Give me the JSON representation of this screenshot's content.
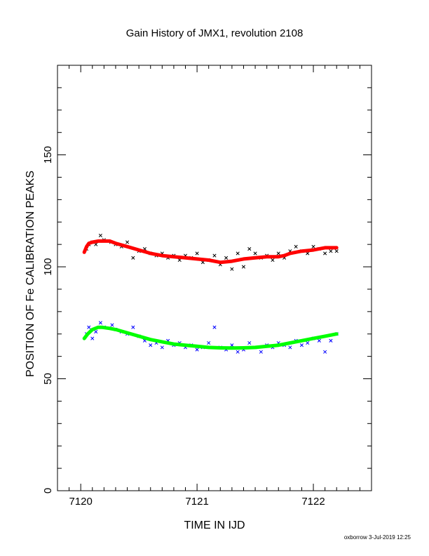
{
  "chart_data": {
    "type": "scatter",
    "title": "Gain History of JMX1, revolution 2108",
    "xlabel": "TIME IN IJD",
    "ylabel": "POSITION OF Fe CALIBRATION PEAKS",
    "xlim": [
      7119.8,
      7122.5
    ],
    "ylim": [
      0,
      190
    ],
    "x_ticks": [
      7120,
      7121,
      7122
    ],
    "x_tick_labels": [
      "7120",
      "7121",
      "7122"
    ],
    "y_ticks": [
      0,
      50,
      100,
      150
    ],
    "y_tick_labels": [
      "0",
      "50",
      "100",
      "150"
    ],
    "grid": false,
    "footer": "oxborrow  3-Jul-2019 12:25",
    "series": [
      {
        "role": "measured-upper",
        "marker": "x",
        "color": "#000000",
        "x": [
          7120.05,
          7120.07,
          7120.1,
          7120.13,
          7120.17,
          7120.2,
          7120.26,
          7120.3,
          7120.35,
          7120.4,
          7120.45,
          7120.5,
          7120.55,
          7120.6,
          7120.65,
          7120.7,
          7120.75,
          7120.8,
          7120.85,
          7120.9,
          7120.95,
          7121.0,
          7121.05,
          7121.1,
          7121.15,
          7121.2,
          7121.25,
          7121.3,
          7121.35,
          7121.4,
          7121.45,
          7121.5,
          7121.55,
          7121.6,
          7121.65,
          7121.7,
          7121.75,
          7121.8,
          7121.85,
          7121.9,
          7121.95,
          7122.0,
          7122.05,
          7122.1,
          7122.15,
          7122.2
        ],
        "y": [
          108,
          110,
          111,
          110,
          114,
          112,
          111,
          110,
          109,
          111,
          104,
          107,
          108,
          106,
          105,
          106,
          104,
          105,
          103,
          105,
          104,
          106,
          102,
          103,
          105,
          101,
          104,
          99,
          106,
          100,
          108,
          106,
          104,
          105,
          103,
          106,
          104,
          107,
          109,
          107,
          106,
          109,
          108,
          106,
          107,
          107
        ]
      },
      {
        "role": "fit-upper",
        "marker": "line",
        "color": "#ff0000",
        "x": [
          7120.03,
          7120.05,
          7120.07,
          7120.1,
          7120.15,
          7120.18,
          7120.25,
          7120.3,
          7120.4,
          7120.5,
          7120.6,
          7120.7,
          7120.8,
          7120.9,
          7121.0,
          7121.1,
          7121.2,
          7121.3,
          7121.4,
          7121.5,
          7121.6,
          7121.7,
          7121.75,
          7121.8,
          7121.9,
          7122.0,
          7122.1,
          7122.2
        ],
        "y": [
          106.5,
          109,
          110.5,
          111,
          111.5,
          111.5,
          111.5,
          110.5,
          109,
          107.5,
          106,
          105,
          104.5,
          104,
          103.5,
          103,
          102,
          102.5,
          103.5,
          104,
          104.5,
          104.5,
          105,
          106,
          107,
          107.5,
          108.5,
          108.5
        ]
      },
      {
        "role": "measured-lower",
        "marker": "x",
        "color": "#0000ff",
        "x": [
          7120.05,
          7120.07,
          7120.1,
          7120.13,
          7120.17,
          7120.2,
          7120.27,
          7120.3,
          7120.35,
          7120.4,
          7120.45,
          7120.5,
          7120.55,
          7120.6,
          7120.65,
          7120.7,
          7120.75,
          7120.8,
          7120.85,
          7120.9,
          7120.95,
          7121.0,
          7121.05,
          7121.1,
          7121.15,
          7121.2,
          7121.25,
          7121.3,
          7121.35,
          7121.4,
          7121.45,
          7121.5,
          7121.55,
          7121.6,
          7121.65,
          7121.7,
          7121.75,
          7121.8,
          7121.85,
          7121.9,
          7121.95,
          7122.0,
          7122.05,
          7122.1,
          7122.15,
          7122.2
        ],
        "y": [
          70,
          73,
          68,
          71,
          75,
          73,
          74,
          72,
          71,
          70,
          73,
          69,
          67,
          65,
          66,
          64,
          67,
          65,
          66,
          64,
          65,
          63,
          64,
          66,
          73,
          64,
          63,
          65,
          62,
          63,
          66,
          64,
          62,
          65,
          64,
          66,
          65,
          64,
          67,
          65,
          66,
          68,
          67,
          62,
          67,
          70
        ]
      },
      {
        "role": "fit-lower",
        "marker": "line",
        "color": "#00ff00",
        "x": [
          7120.03,
          7120.06,
          7120.1,
          7120.15,
          7120.18,
          7120.25,
          7120.3,
          7120.4,
          7120.5,
          7120.6,
          7120.7,
          7120.8,
          7120.9,
          7121.0,
          7121.1,
          7121.2,
          7121.3,
          7121.4,
          7121.5,
          7121.6,
          7121.7,
          7121.8,
          7121.9,
          7122.0,
          7122.1,
          7122.2
        ],
        "y": [
          68,
          70,
          72,
          73,
          73,
          72.5,
          72,
          70.5,
          69,
          67.5,
          66.5,
          65.5,
          65,
          64.5,
          64,
          63.8,
          63.7,
          63.8,
          64,
          64.5,
          65,
          66,
          67,
          68,
          69,
          70
        ]
      }
    ]
  }
}
